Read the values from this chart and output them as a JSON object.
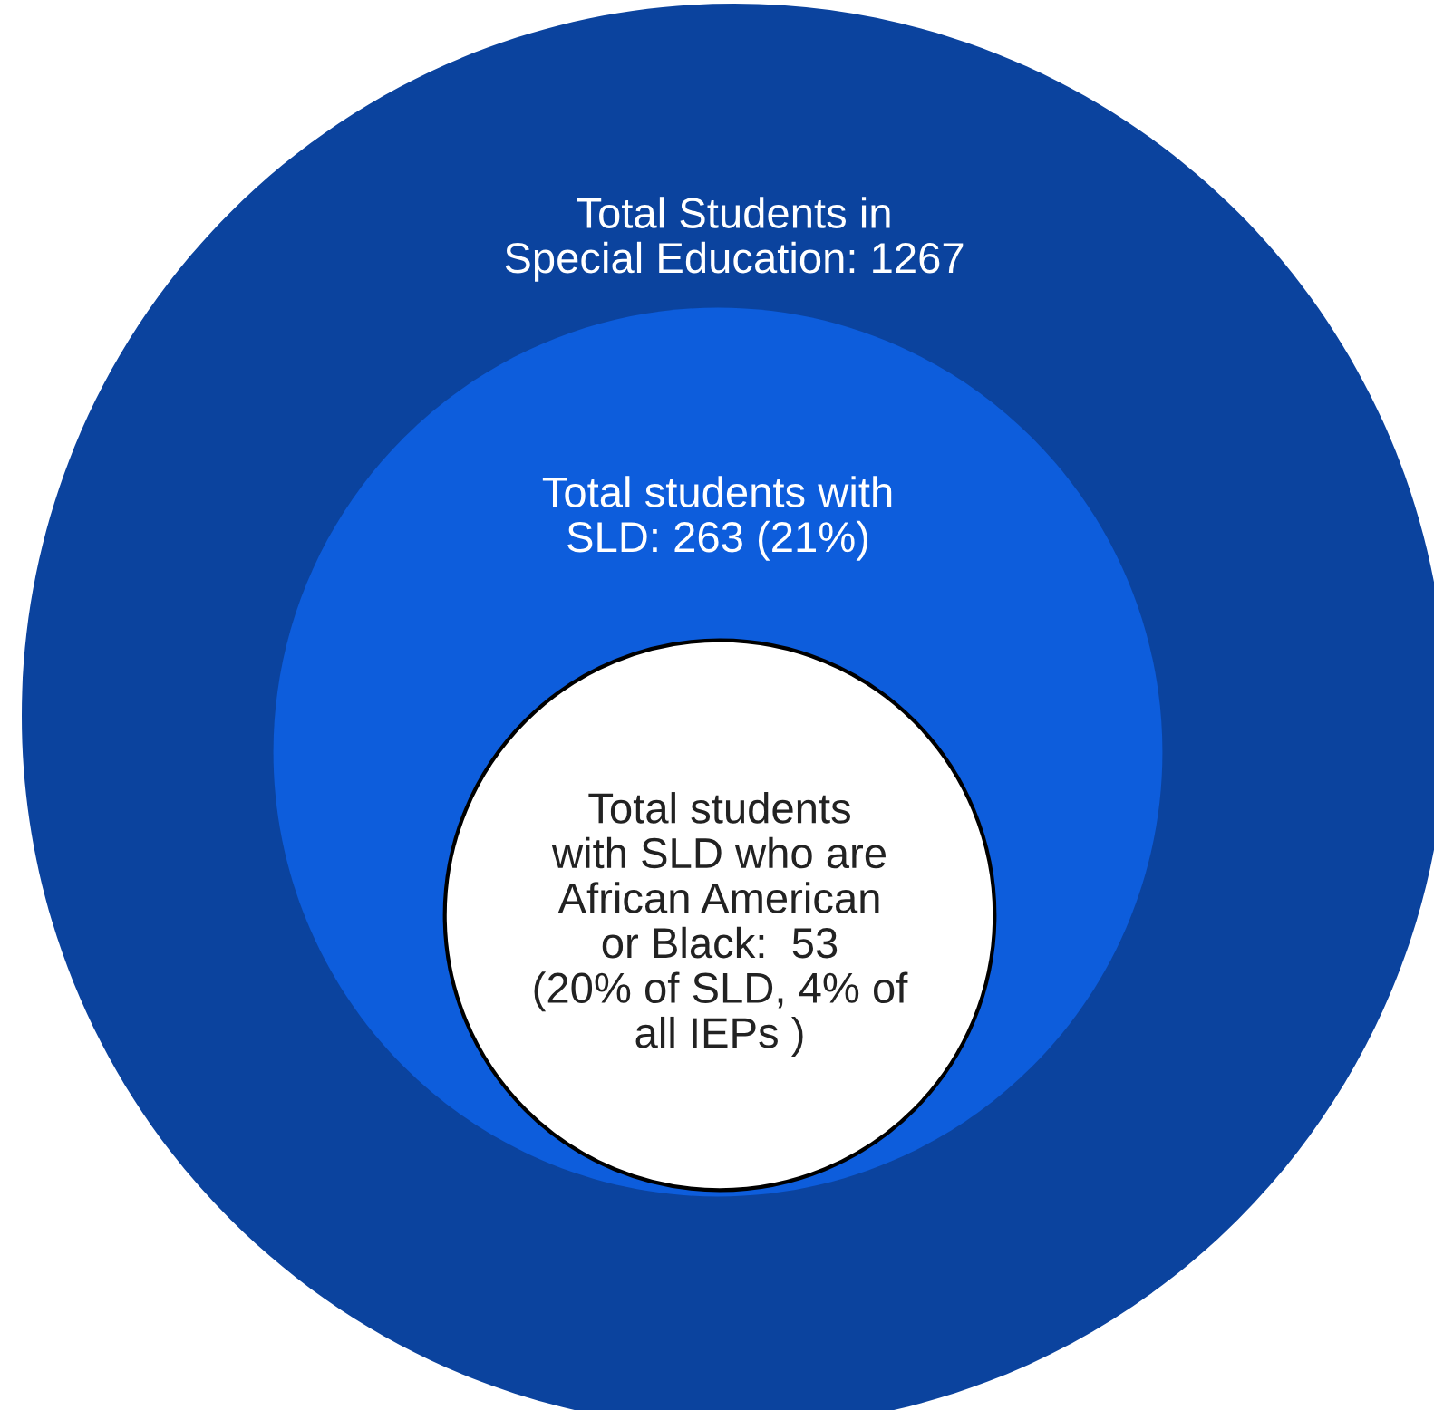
{
  "chart_data": {
    "type": "other",
    "categories": [
      "Total Students in\nSpecial Education",
      "Total students with\nSLD",
      "Total students\nwith SLD who are\nAfrican American\nor Black"
    ],
    "values": [
      1267,
      263,
      53
    ],
    "value_labels": [
      ": 1267",
      ": 263 (21%)",
      ":  53\n(20% of SLD, 4% of\nall IEPs )"
    ],
    "colors": [
      "#0b439e",
      "#0d5ddc",
      "#ffffff"
    ]
  }
}
